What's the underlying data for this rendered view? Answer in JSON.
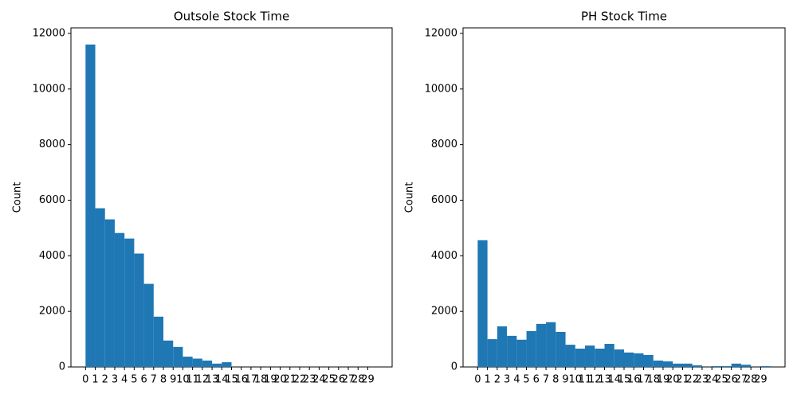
{
  "chart_data": [
    {
      "type": "histogram",
      "title": "Outsole Stock Time",
      "y_label": "Count",
      "color": "#1f77b4",
      "bins": [
        0,
        1,
        2,
        3,
        4,
        5,
        6,
        7,
        8,
        9,
        10,
        11,
        12,
        13,
        14,
        15,
        16,
        17,
        18,
        19,
        20,
        21,
        22,
        23,
        24,
        25,
        26,
        27,
        28,
        29,
        30
      ],
      "counts": [
        11600,
        5710,
        5310,
        4820,
        4620,
        4080,
        2990,
        1810,
        950,
        720,
        370,
        300,
        230,
        120,
        170,
        0,
        0,
        0,
        0,
        0,
        0,
        0,
        0,
        0,
        0,
        0,
        0,
        0,
        0,
        0
      ],
      "xlim": [
        -1.5,
        31.5
      ],
      "xticks": [
        0,
        1,
        2,
        3,
        4,
        5,
        6,
        7,
        8,
        9,
        10,
        11,
        12,
        13,
        14,
        15,
        16,
        17,
        18,
        19,
        20,
        21,
        22,
        23,
        24,
        25,
        26,
        27,
        28,
        29
      ],
      "ylim": [
        0,
        12200
      ],
      "yticks": [
        0,
        2000,
        4000,
        6000,
        8000,
        10000,
        12000
      ]
    },
    {
      "type": "histogram",
      "title": "PH Stock Time",
      "y_label": "Count",
      "color": "#1f77b4",
      "bins": [
        0,
        1,
        2,
        3,
        4,
        5,
        6,
        7,
        8,
        9,
        10,
        11,
        12,
        13,
        14,
        15,
        16,
        17,
        18,
        19,
        20,
        21,
        22,
        23,
        24,
        25,
        26,
        27,
        28,
        29,
        30
      ],
      "counts": [
        4560,
        1000,
        1460,
        1120,
        980,
        1290,
        1550,
        1610,
        1260,
        800,
        660,
        770,
        660,
        830,
        630,
        520,
        490,
        430,
        230,
        200,
        120,
        120,
        60,
        0,
        30,
        30,
        120,
        80,
        0,
        30
      ],
      "xlim": [
        -1.5,
        31.5
      ],
      "xticks": [
        0,
        1,
        2,
        3,
        4,
        5,
        6,
        7,
        8,
        9,
        10,
        11,
        12,
        13,
        14,
        15,
        16,
        17,
        18,
        19,
        20,
        21,
        22,
        23,
        24,
        25,
        26,
        27,
        28,
        29
      ],
      "ylim": [
        0,
        12200
      ],
      "yticks": [
        0,
        2000,
        4000,
        6000,
        8000,
        10000,
        12000
      ]
    }
  ]
}
